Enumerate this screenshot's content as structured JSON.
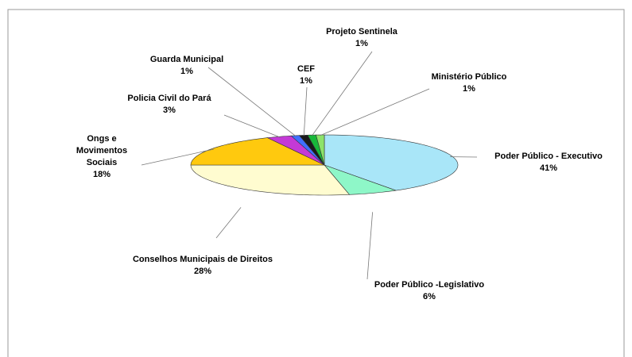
{
  "chart_data": {
    "type": "pie3d",
    "categories": [
      "Poder Público - Executivo",
      "Poder Público -Legislativo",
      "Conselhos Municipais de Direitos",
      "Ongs e Movimentos Sociais",
      "Policia Civil do Pará",
      "Guarda Municipal",
      "CEF",
      "Projeto Sentinela",
      "Ministério Público"
    ],
    "values": [
      41,
      6,
      28,
      18,
      3,
      1,
      1,
      1,
      1
    ],
    "value_labels": [
      "41%",
      "6%",
      "28%",
      "18%",
      "3%",
      "1%",
      "1%",
      "1%",
      "1%"
    ],
    "colors": [
      "#a9e6f8",
      "#8ef7c8",
      "#fffcd0",
      "#ffc90e",
      "#c43ad6",
      "#3f6fff",
      "#1a1a1a",
      "#18b83a",
      "#8de36a"
    ],
    "side_colors": [
      "#3d7caa",
      "#1e8a5e",
      "#8e9a62",
      "#b88d00",
      "#7a1f88",
      "#203c99",
      "#000000",
      "#0e6e22",
      "#4f8a3a"
    ]
  }
}
